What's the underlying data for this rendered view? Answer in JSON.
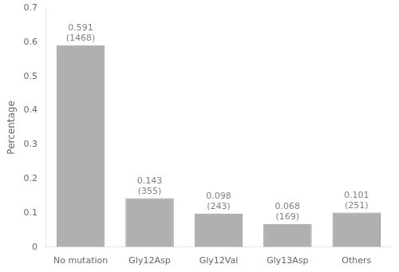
{
  "chart_data": {
    "type": "bar",
    "categories": [
      "No mutation",
      "Gly12Asp",
      "Gly12Val",
      "Gly13Asp",
      "Others"
    ],
    "values": [
      0.591,
      0.143,
      0.098,
      0.068,
      0.101
    ],
    "counts": [
      1468,
      355,
      243,
      169,
      251
    ],
    "color": "#b0b0b0",
    "ylabel": "Percentage",
    "ylim": [
      0.0,
      0.7
    ],
    "yticks": [
      0.0,
      0.1,
      0.2,
      0.3,
      0.4,
      0.5,
      0.6,
      0.7
    ],
    "data_labels": true,
    "grid": false
  }
}
